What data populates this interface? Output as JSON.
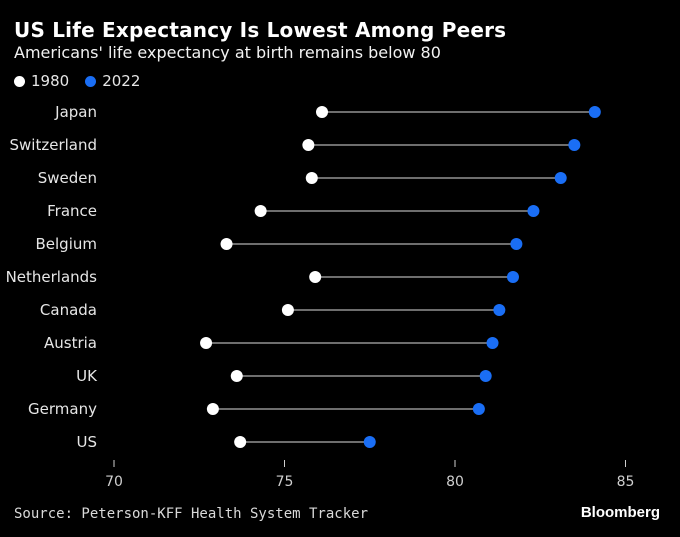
{
  "header": {
    "title": "US Life Expectancy Is Lowest Among Peers",
    "subtitle": "Americans' life expectancy at birth remains below 80"
  },
  "legend": [
    {
      "label": "1980",
      "color": "#ffffff"
    },
    {
      "label": "2022",
      "color": "#1a6ef5"
    }
  ],
  "footer": {
    "source": "Source: Peterson-KFF Health System Tracker",
    "brand": "Bloomberg"
  },
  "colors": {
    "background": "#000000",
    "connector": "#6e6e6e",
    "series_1980": "#ffffff",
    "series_2022": "#1a6ef5"
  },
  "chart_data": {
    "type": "dumbbell",
    "categories": [
      "Japan",
      "Switzerland",
      "Sweden",
      "France",
      "Belgium",
      "Netherlands",
      "Canada",
      "Austria",
      "UK",
      "Germany",
      "US"
    ],
    "series": [
      {
        "name": "1980",
        "values": [
          76.1,
          75.7,
          75.8,
          74.3,
          73.3,
          75.9,
          75.1,
          72.7,
          73.6,
          72.9,
          73.7
        ]
      },
      {
        "name": "2022",
        "values": [
          84.1,
          83.5,
          83.1,
          82.3,
          81.8,
          81.7,
          81.3,
          81.1,
          80.9,
          80.7,
          77.5
        ]
      }
    ],
    "xlim": [
      70,
      86
    ],
    "xticks": [
      70,
      75,
      80,
      85
    ],
    "grid": false,
    "legend_position": "top-left"
  }
}
